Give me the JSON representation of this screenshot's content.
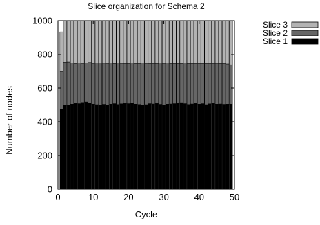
{
  "chart_data": {
    "type": "bar",
    "stacked": true,
    "title": "Slice organization for Schema 2",
    "xlabel": "Cycle",
    "ylabel": "Number of nodes",
    "xlim": [
      0,
      50
    ],
    "ylim": [
      0,
      1000
    ],
    "xticks": [
      0,
      10,
      20,
      30,
      40,
      50
    ],
    "yticks": [
      0,
      200,
      400,
      600,
      800,
      1000
    ],
    "grid": false,
    "legend_position": "top-right, outside plot",
    "categories": [
      1,
      2,
      3,
      4,
      5,
      6,
      7,
      8,
      9,
      10,
      11,
      12,
      13,
      14,
      15,
      16,
      17,
      18,
      19,
      20,
      21,
      22,
      23,
      24,
      25,
      26,
      27,
      28,
      29,
      30,
      31,
      32,
      33,
      34,
      35,
      36,
      37,
      38,
      39,
      40,
      41,
      42,
      43,
      44,
      45,
      46,
      47,
      48,
      49
    ],
    "series": [
      {
        "name": "Slice 1",
        "color": "#000000",
        "values": [
          475,
          497,
          500,
          505,
          510,
          508,
          515,
          518,
          512,
          505,
          502,
          500,
          504,
          500,
          505,
          508,
          503,
          507,
          510,
          508,
          512,
          505,
          503,
          500,
          502,
          508,
          506,
          510,
          504,
          500,
          505,
          506,
          508,
          510,
          514,
          508,
          503,
          506,
          510,
          505,
          508,
          502,
          507,
          510,
          505,
          506,
          504,
          505,
          505
        ]
      },
      {
        "name": "Slice 2",
        "color": "#666666",
        "values": [
          225,
          257,
          255,
          245,
          235,
          242,
          232,
          230,
          240,
          242,
          248,
          250,
          240,
          247,
          245,
          238,
          245,
          240,
          235,
          237,
          236,
          240,
          242,
          250,
          245,
          238,
          240,
          235,
          246,
          247,
          243,
          240,
          238,
          235,
          232,
          240,
          243,
          240,
          236,
          241,
          238,
          244,
          239,
          235,
          242,
          240,
          242,
          238,
          233
        ]
      },
      {
        "name": "Slice 3",
        "color": "#b3b3b3",
        "values": [
          234,
          246,
          245,
          250,
          255,
          250,
          253,
          252,
          248,
          253,
          250,
          250,
          256,
          253,
          250,
          254,
          252,
          253,
          255,
          255,
          252,
          255,
          255,
          250,
          253,
          254,
          254,
          255,
          250,
          253,
          252,
          254,
          254,
          255,
          254,
          252,
          254,
          254,
          254,
          254,
          254,
          254,
          254,
          255,
          253,
          254,
          254,
          257,
          262
        ]
      }
    ]
  }
}
